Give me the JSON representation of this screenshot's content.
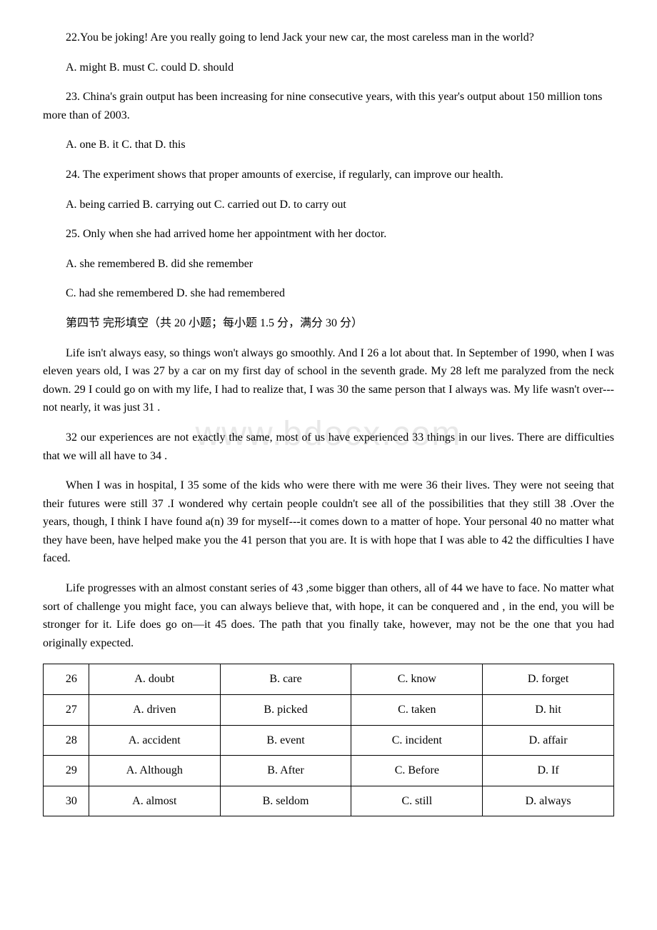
{
  "watermark": "www.bdocx.com",
  "q22": {
    "text": "22.You be joking! Are you really going to lend Jack your new car, the most careless man in the world?",
    "options": "A. might  B. must  C. could  D. should"
  },
  "q23": {
    "text": "23. China's grain output has been increasing for nine consecutive years, with this year's output about 150 million tons more than  of 2003.",
    "options": "A. one  B. it    C. that    D. this"
  },
  "q24": {
    "text": "24. The experiment shows that proper amounts of exercise, if  regularly, can improve our health.",
    "options": "A. being carried  B. carrying out  C. carried out    D. to carry out"
  },
  "q25": {
    "text": "25. Only when she had arrived home her appointment with her doctor.",
    "options1": "A. she remembered  B. did she remember",
    "options2": "C. had she remembered  D. she had remembered"
  },
  "section_title": "第四节 完形填空（共 20 小题；每小题 1.5 分，满分 30 分）",
  "passage1": "Life isn't always easy, so things won't always go smoothly. And I  26  a lot about that. In September of 1990, when I was eleven years old, I was  27  by a car on my first day of school in the seventh grade. My  28  left me paralyzed from the neck down.  29  I could go on with my life, I had to realize that, I was  30  the same person that I always was. My life wasn't over---not nearly, it was just  31  .",
  "passage2": "  32 our experiences are not exactly the same, most of us have experienced  33  things in our lives. There are difficulties that we will all have to  34  .",
  "passage3": "When I was in hospital, I  35  some of the kids who were there with me were  36  their lives. They were not seeing that their futures were still  37  .I wondered why certain people couldn't see all of the possibilities that they still  38  .Over the years, though, I think I have found a(n)  39  for myself---it comes down to a matter of hope. Your personal  40  no matter what they have been, have helped make you the  41  person that you are. It is with hope that I was able to  42  the difficulties I have faced.",
  "passage4": " Life progresses with an almost constant series of  43  ,some bigger than others, all of  44  we have to face. No matter what sort of challenge you might face, you can always believe that, with hope, it can be conquered and , in the end, you will be stronger for it. Life does go on—it  45  does. The path that you finally take, however, may not be the one that you had originally expected.",
  "table": {
    "rows": [
      {
        "num": "26",
        "a": "A. doubt",
        "b": "B. care",
        "c": "C. know",
        "d": "D. forget"
      },
      {
        "num": "27",
        "a": "A. driven",
        "b": "B. picked",
        "c": "C. taken",
        "d": "D. hit"
      },
      {
        "num": "28",
        "a": "A. accident",
        "b": "B. event",
        "c": "C. incident",
        "d": "D. affair"
      },
      {
        "num": "29",
        "a": "A. Although",
        "b": "B. After",
        "c": "C. Before",
        "d": "D. If"
      },
      {
        "num": "30",
        "a": "A. almost",
        "b": "B. seldom",
        "c": "C. still",
        "d": "D. always"
      }
    ]
  }
}
